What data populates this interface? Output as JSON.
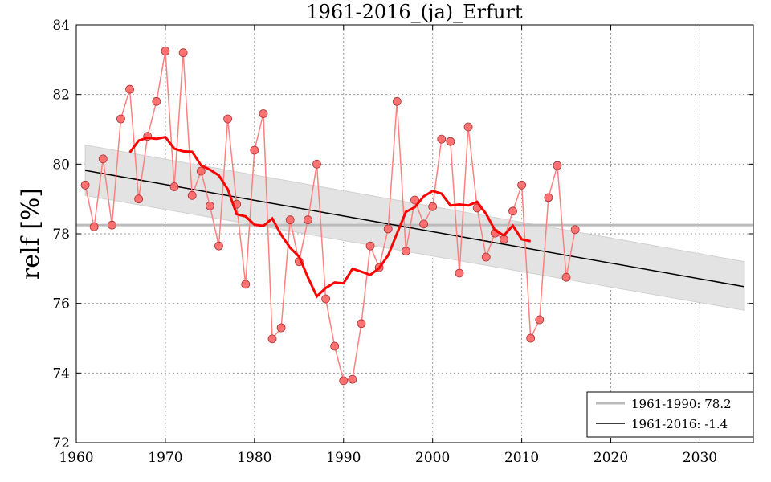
{
  "chart_data": {
    "type": "line",
    "title": "1961-2016_(ja)_Erfurt",
    "xlabel": "",
    "ylabel": "relf [%]",
    "xlim": [
      1960,
      2036
    ],
    "ylim": [
      72,
      84
    ],
    "xticks": [
      1960,
      1970,
      1980,
      1990,
      2000,
      2010,
      2020,
      2030
    ],
    "yticks": [
      72,
      74,
      76,
      78,
      80,
      82,
      84
    ],
    "grid": true,
    "legend_position": "bottom-right",
    "x": [
      1961,
      1962,
      1963,
      1964,
      1965,
      1966,
      1967,
      1968,
      1969,
      1970,
      1971,
      1972,
      1973,
      1974,
      1975,
      1976,
      1977,
      1978,
      1979,
      1980,
      1981,
      1982,
      1983,
      1984,
      1985,
      1986,
      1987,
      1988,
      1989,
      1990,
      1991,
      1992,
      1993,
      1994,
      1995,
      1996,
      1997,
      1998,
      1999,
      2000,
      2001,
      2002,
      2003,
      2004,
      2005,
      2006,
      2007,
      2008,
      2009,
      2010,
      2011,
      2012,
      2013,
      2014,
      2015,
      2016
    ],
    "values": [
      79.4,
      78.2,
      80.15,
      78.25,
      81.3,
      82.15,
      79.0,
      80.8,
      81.8,
      83.25,
      79.35,
      83.2,
      79.1,
      79.8,
      78.8,
      77.65,
      81.3,
      78.85,
      76.55,
      80.4,
      81.45,
      74.98,
      75.3,
      78.4,
      77.2,
      78.4,
      80.0,
      76.13,
      74.77,
      73.78,
      73.82,
      75.42,
      77.65,
      77.03,
      78.14,
      81.8,
      77.5,
      78.97,
      78.28,
      78.78,
      80.72,
      80.65,
      76.87,
      81.07,
      78.74,
      77.33,
      78.02,
      77.84,
      78.65,
      79.4,
      75.0,
      75.53,
      79.04,
      79.96,
      76.75,
      78.12
    ],
    "running_mean_window": 11,
    "baseline": {
      "label": "1961-1990: 78.2",
      "value": 78.25,
      "color": "#bbbbbb"
    },
    "trend": {
      "label": "1961-2016: -1.4",
      "x": [
        1961,
        2035
      ],
      "y": [
        79.82,
        76.48
      ],
      "band_low": [
        79.1,
        75.8
      ],
      "band_high": [
        80.55,
        77.2
      ],
      "color": "#000000"
    },
    "colors": {
      "points": "#ff6666",
      "line": "#ff8080",
      "mean": "#ff0000",
      "band": "#e3e3e3"
    }
  }
}
